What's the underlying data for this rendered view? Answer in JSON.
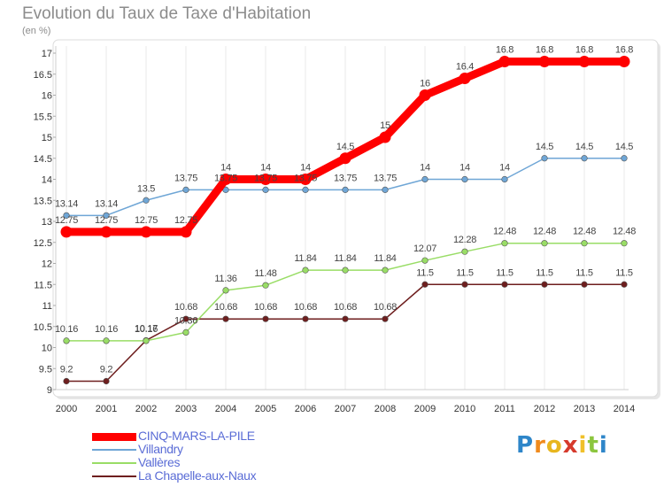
{
  "chart_data": {
    "type": "line",
    "title": "Evolution du Taux de Taxe d'Habitation",
    "unit_label": "(en %)",
    "x": [
      2000,
      2001,
      2002,
      2003,
      2004,
      2005,
      2006,
      2007,
      2008,
      2009,
      2010,
      2011,
      2012,
      2013,
      2014
    ],
    "ylim": [
      9,
      17
    ],
    "y_ticks": [
      9,
      9.5,
      10,
      10.5,
      11,
      11.5,
      12,
      12.5,
      13,
      13.5,
      14,
      14.5,
      15,
      15.5,
      16,
      16.5,
      17
    ],
    "grid": "vertical",
    "legend_position": "bottom-left",
    "series": [
      {
        "name": "CINQ-MARS-LA-PILE",
        "color": "#ff0000",
        "values": [
          12.75,
          12.75,
          12.75,
          12.75,
          14,
          14,
          14,
          14.5,
          15,
          16,
          16.4,
          16.8,
          16.8,
          16.8,
          16.8
        ],
        "labels": [
          "12.75",
          "12.75",
          "12.75",
          "12.75",
          "14",
          "14",
          "14",
          "14.5",
          "15",
          "16",
          "16.4",
          "16.8",
          "16.8",
          "16.8",
          "16.8"
        ]
      },
      {
        "name": "Villandry",
        "color": "#6fa6d6",
        "values": [
          13.14,
          13.14,
          13.5,
          13.75,
          13.75,
          13.75,
          13.75,
          13.75,
          13.75,
          14,
          14,
          14,
          14.5,
          14.5,
          14.5
        ],
        "labels": [
          "13.14",
          "13.14",
          "13.5",
          "13.75",
          "13.75",
          "13.75",
          "13.75",
          "13.75",
          "13.75",
          "14",
          "14",
          "14",
          "14.5",
          "14.5",
          "14.5"
        ]
      },
      {
        "name": "Vallères",
        "color": "#99dd66",
        "values": [
          10.16,
          10.16,
          10.16,
          10.36,
          11.36,
          11.48,
          11.84,
          11.84,
          11.84,
          12.07,
          12.28,
          12.48,
          12.48,
          12.48,
          12.48
        ],
        "labels": [
          "10.16",
          "10.16",
          "10.16",
          "10.36",
          "11.36",
          "11.48",
          "11.84",
          "11.84",
          "11.84",
          "12.07",
          "12.28",
          "12.48",
          "12.48",
          "12.48",
          "12.48"
        ]
      },
      {
        "name": "La Chapelle-aux-Naux",
        "color": "#6e1e1e",
        "values": [
          9.2,
          9.2,
          10.17,
          10.68,
          10.68,
          10.68,
          10.68,
          10.68,
          10.68,
          11.5,
          11.5,
          11.5,
          11.5,
          11.5,
          11.5
        ],
        "labels": [
          "9.2",
          "9.2",
          "10.17",
          "10.68",
          "10.68",
          "10.68",
          "10.68",
          "10.68",
          "10.68",
          "11.5",
          "11.5",
          "11.5",
          "11.5",
          "11.5",
          "11.5"
        ]
      }
    ]
  },
  "brand": {
    "letters": [
      "P",
      "r",
      "o",
      "x",
      "i",
      "t",
      "i"
    ],
    "colors": [
      "#2e86c9",
      "#f08a1c",
      "#e8b61e",
      "#d63a2c",
      "#f0c02a",
      "#8cc63e",
      "#2e86c9"
    ]
  }
}
